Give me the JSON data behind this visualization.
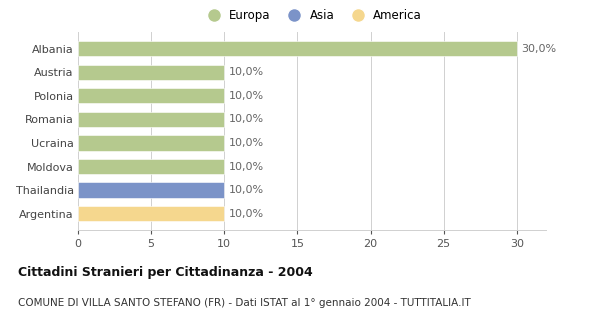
{
  "categories": [
    "Argentina",
    "Thailandia",
    "Moldova",
    "Ucraina",
    "Romania",
    "Polonia",
    "Austria",
    "Albania"
  ],
  "values": [
    10.0,
    10.0,
    10.0,
    10.0,
    10.0,
    10.0,
    10.0,
    30.0
  ],
  "colors": [
    "#f5d78e",
    "#7b93c8",
    "#b5c98e",
    "#b5c98e",
    "#b5c98e",
    "#b5c98e",
    "#b5c98e",
    "#b5c98e"
  ],
  "legend_labels": [
    "Europa",
    "Asia",
    "America"
  ],
  "legend_colors": [
    "#b5c98e",
    "#7b93c8",
    "#f5d78e"
  ],
  "xlim": [
    0,
    32
  ],
  "xticks": [
    0,
    5,
    10,
    15,
    20,
    25,
    30
  ],
  "title": "Cittadini Stranieri per Cittadinanza - 2004",
  "subtitle": "COMUNE DI VILLA SANTO STEFANO (FR) - Dati ISTAT al 1° gennaio 2004 - TUTTITALIA.IT",
  "bg_color": "#ffffff",
  "grid_color": "#d0d0d0",
  "bar_label_color": "#666666",
  "title_fontsize": 9,
  "subtitle_fontsize": 7.5,
  "tick_fontsize": 8,
  "label_fontsize": 8,
  "bar_height": 0.65
}
